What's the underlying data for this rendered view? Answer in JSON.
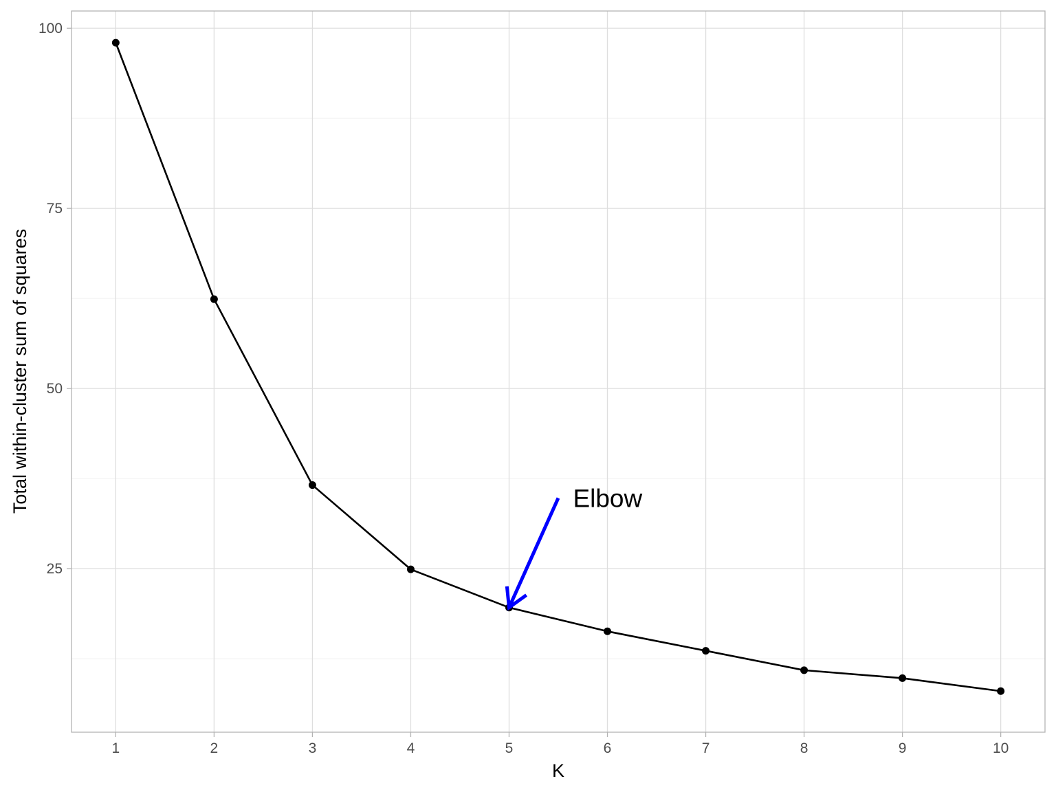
{
  "chart_data": {
    "type": "line",
    "xlabel": "K",
    "ylabel": "Total within-cluster sum of squares",
    "x": [
      1,
      2,
      3,
      4,
      5,
      6,
      7,
      8,
      9,
      10
    ],
    "series": [
      {
        "values": [
          98.0,
          62.4,
          36.6,
          24.9,
          19.6,
          16.3,
          13.6,
          10.9,
          9.8,
          8.0
        ]
      }
    ],
    "xlim": [
      0.55,
      10.45
    ],
    "ylim": [
      2.3,
      102.4
    ],
    "x_ticks": [
      "1",
      "2",
      "3",
      "4",
      "5",
      "6",
      "7",
      "8",
      "9",
      "10"
    ],
    "y_ticks": [
      {
        "value": 25,
        "label": "25"
      },
      {
        "value": 50,
        "label": "50"
      },
      {
        "value": 75,
        "label": "75"
      },
      {
        "value": 100,
        "label": "100"
      }
    ],
    "y_minor_ticks": [
      12.5,
      37.5,
      62.5,
      87.5
    ],
    "grid": true,
    "legend": "none",
    "annotation": {
      "text": "Elbow",
      "arrow_from": {
        "x": 5.5,
        "y": 34.8
      },
      "arrow_to": {
        "x": 5.0,
        "y": 19.6
      },
      "text_x": 5.65,
      "text_y": 34.8,
      "color": "#0000ff"
    },
    "colors": {
      "line": "#000000",
      "point": "#000000",
      "arrow": "#0000ff"
    }
  }
}
